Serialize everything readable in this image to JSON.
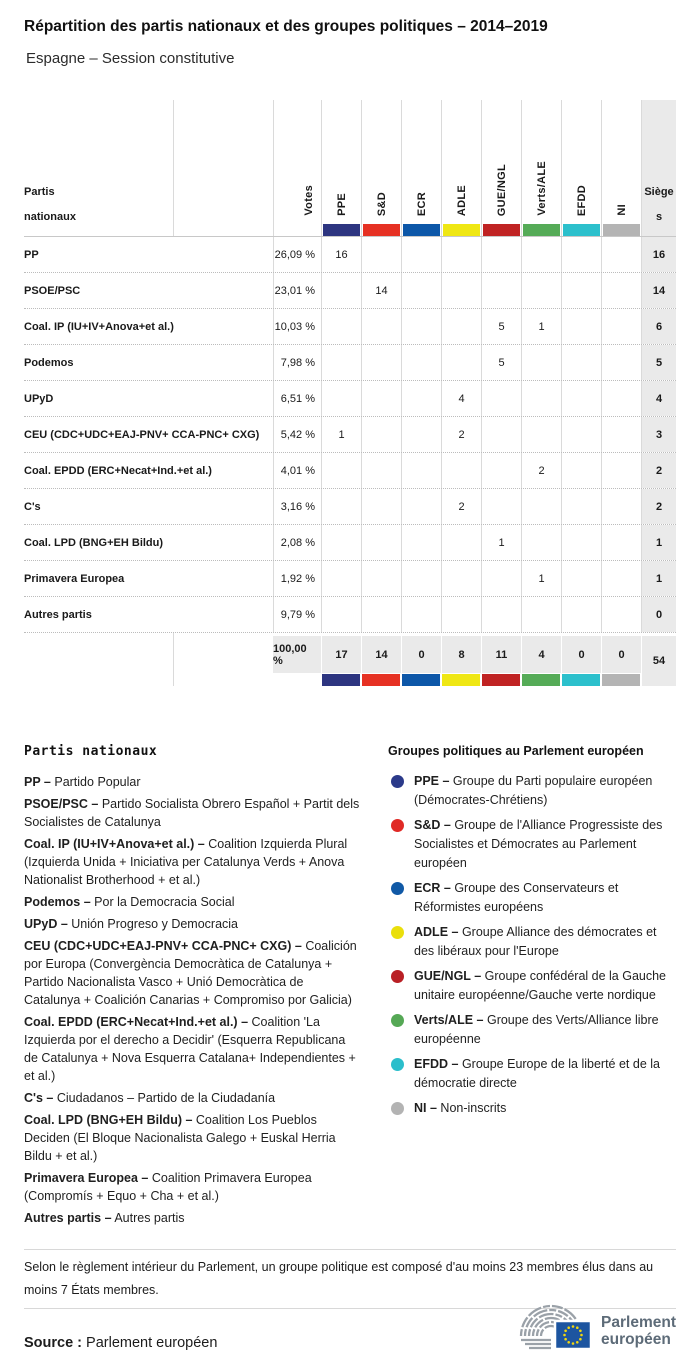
{
  "title": "Répartition des partis nationaux et des groupes politiques – 2014–2019",
  "subtitle": "Espagne – Session constitutive",
  "table": {
    "corner_header": "Partis nationaux",
    "votes_header": "Votes",
    "seats_header": "Sièges",
    "groups": [
      {
        "id": "PPE",
        "color": "#2d3580"
      },
      {
        "id": "S&D",
        "color": "#e63123"
      },
      {
        "id": "ECR",
        "color": "#0d57a8"
      },
      {
        "id": "ADLE",
        "color": "#efe714"
      },
      {
        "id": "GUE/NGL",
        "color": "#c02323"
      },
      {
        "id": "Verts/ALE",
        "color": "#55ab57"
      },
      {
        "id": "EFDD",
        "color": "#2cc0cc"
      },
      {
        "id": "NI",
        "color": "#b4b4b4"
      }
    ],
    "rows": [
      {
        "party": "PP",
        "votes": "26,09 %",
        "groups": [
          "16",
          "",
          "",
          "",
          "",
          "",
          "",
          ""
        ],
        "seats": "16"
      },
      {
        "party": "PSOE/PSC",
        "votes": "23,01 %",
        "groups": [
          "",
          "14",
          "",
          "",
          "",
          "",
          "",
          ""
        ],
        "seats": "14"
      },
      {
        "party": "Coal. IP (IU+IV+Anova+et al.)",
        "votes": "10,03 %",
        "groups": [
          "",
          "",
          "",
          "",
          "5",
          "1",
          "",
          ""
        ],
        "seats": "6"
      },
      {
        "party": "Podemos",
        "votes": "7,98 %",
        "groups": [
          "",
          "",
          "",
          "",
          "5",
          "",
          "",
          ""
        ],
        "seats": "5"
      },
      {
        "party": "UPyD",
        "votes": "6,51 %",
        "groups": [
          "",
          "",
          "",
          "4",
          "",
          "",
          "",
          ""
        ],
        "seats": "4"
      },
      {
        "party": "CEU (CDC+UDC+EAJ-PNV+ CCA-PNC+ CXG)",
        "votes": "5,42 %",
        "groups": [
          "1",
          "",
          "",
          "2",
          "",
          "",
          "",
          ""
        ],
        "seats": "3"
      },
      {
        "party": "Coal. EPDD (ERC+Necat+Ind.+et al.)",
        "votes": "4,01 %",
        "groups": [
          "",
          "",
          "",
          "",
          "",
          "2",
          "",
          ""
        ],
        "seats": "2"
      },
      {
        "party": "C's",
        "votes": "3,16 %",
        "groups": [
          "",
          "",
          "",
          "2",
          "",
          "",
          "",
          ""
        ],
        "seats": "2"
      },
      {
        "party": "Coal. LPD (BNG+EH Bildu)",
        "votes": "2,08 %",
        "groups": [
          "",
          "",
          "",
          "",
          "1",
          "",
          "",
          ""
        ],
        "seats": "1"
      },
      {
        "party": "Primavera Europea",
        "votes": "1,92 %",
        "groups": [
          "",
          "",
          "",
          "",
          "",
          "1",
          "",
          ""
        ],
        "seats": "1"
      },
      {
        "party": "Autres partis",
        "votes": "9,79 %",
        "groups": [
          "",
          "",
          "",
          "",
          "",
          "",
          "",
          ""
        ],
        "seats": "0"
      }
    ],
    "totals": {
      "votes": "100,00 %",
      "groups": [
        "17",
        "14",
        "0",
        "8",
        "11",
        "4",
        "0",
        "0"
      ],
      "seats": "54"
    }
  },
  "party_legend": {
    "title": "Partis nationaux",
    "entries": [
      {
        "term": "PP –",
        "desc": "Partido Popular"
      },
      {
        "term": "PSOE/PSC –",
        "desc": "Partido Socialista Obrero Español + Partit dels Socialistes de Catalunya"
      },
      {
        "term": "Coal. IP (IU+IV+Anova+et al.) –",
        "desc": "Coalition Izquierda Plural (Izquierda Unida + Iniciativa per Catalunya Verds + Anova Nationalist Brotherhood + et al.)"
      },
      {
        "term": "Podemos –",
        "desc": "Por la Democracia Social"
      },
      {
        "term": "UPyD –",
        "desc": "Unión Progreso y Democracia"
      },
      {
        "term": "CEU (CDC+UDC+EAJ-PNV+ CCA-PNC+ CXG) –",
        "desc": "Coalición por Europa (Convergència Democràtica de Catalunya + Partido Nacionalista Vasco + Unió Democràtica de Catalunya + Coalición Canarias + Compromiso por Galicia)"
      },
      {
        "term": "Coal. EPDD (ERC+Necat+Ind.+et al.) –",
        "desc": "Coalition 'La Izquierda por el derecho a Decidir' (Esquerra Republicana de Catalunya + Nova Esquerra Catalana+ Independientes + et al.)"
      },
      {
        "term": "C's –",
        "desc": "Ciudadanos – Partido de la Ciudadanía"
      },
      {
        "term": "Coal. LPD (BNG+EH Bildu) –",
        "desc": "Coalition Los Pueblos Deciden (El Bloque Nacionalista Galego + Euskal Herria Bildu + et al.)"
      },
      {
        "term": "Primavera Europea –",
        "desc": "Coalition Primavera Europea (Compromís + Equo + Cha + et al.)"
      },
      {
        "term": "Autres partis –",
        "desc": "Autres partis"
      }
    ]
  },
  "group_legend": {
    "title": "Groupes politiques au Parlement européen",
    "entries": [
      {
        "term": "PPE –",
        "desc": "Groupe du Parti populaire européen (Démocrates-Chrétiens)",
        "color": "#2b3a8a"
      },
      {
        "term": "S&D –",
        "desc": "Groupe de l'Alliance Progressiste des Socialistes et Démocrates au Parlement européen",
        "color": "#e02a26"
      },
      {
        "term": "ECR –",
        "desc": "Groupe des Conservateurs et Réformistes européens",
        "color": "#1059a6"
      },
      {
        "term": "ADLE –",
        "desc": "Groupe Alliance des démocrates et des libéraux pour l'Europe",
        "color": "#eadf0c"
      },
      {
        "term": "GUE/NGL –",
        "desc": "Groupe confédéral de la Gauche unitaire européenne/Gauche verte nordique",
        "color": "#b92025"
      },
      {
        "term": "Verts/ALE –",
        "desc": "Groupe des Verts/Alliance libre européenne",
        "color": "#55a855"
      },
      {
        "term": "EFDD –",
        "desc": "Groupe Europe de la liberté et de la démocratie directe",
        "color": "#2bbecb"
      },
      {
        "term": "NI –",
        "desc": "Non-inscrits",
        "color": "#b3b3b3"
      }
    ]
  },
  "footnote": "Selon le règlement intérieur du Parlement, un groupe politique est composé d'au moins 23 membres élus dans au moins 7 États membres.",
  "source": {
    "label": "Source :",
    "value": "Parlement européen"
  },
  "logo": {
    "line1": "Parlement",
    "line2": "européen"
  },
  "chart_data": {
    "type": "table",
    "title": "Répartition des partis nationaux et des groupes politiques – 2014–2019",
    "subtitle": "Espagne – Session constitutive",
    "columns": [
      "Partis nationaux",
      "Votes",
      "PPE",
      "S&D",
      "ECR",
      "ADLE",
      "GUE/NGL",
      "Verts/ALE",
      "EFDD",
      "NI",
      "Sièges"
    ],
    "rows": [
      [
        "PP",
        "26,09 %",
        16,
        null,
        null,
        null,
        null,
        null,
        null,
        null,
        16
      ],
      [
        "PSOE/PSC",
        "23,01 %",
        null,
        14,
        null,
        null,
        null,
        null,
        null,
        null,
        14
      ],
      [
        "Coal. IP (IU+IV+Anova+et al.)",
        "10,03 %",
        null,
        null,
        null,
        null,
        5,
        1,
        null,
        null,
        6
      ],
      [
        "Podemos",
        "7,98 %",
        null,
        null,
        null,
        null,
        5,
        null,
        null,
        null,
        5
      ],
      [
        "UPyD",
        "6,51 %",
        null,
        null,
        null,
        4,
        null,
        null,
        null,
        null,
        4
      ],
      [
        "CEU (CDC+UDC+EAJ-PNV+ CCA-PNC+ CXG)",
        "5,42 %",
        1,
        null,
        null,
        2,
        null,
        null,
        null,
        null,
        3
      ],
      [
        "Coal. EPDD (ERC+Necat+Ind.+et al.)",
        "4,01 %",
        null,
        null,
        null,
        null,
        null,
        2,
        null,
        null,
        2
      ],
      [
        "C's",
        "3,16 %",
        null,
        null,
        null,
        2,
        null,
        null,
        null,
        null,
        2
      ],
      [
        "Coal. LPD (BNG+EH Bildu)",
        "2,08 %",
        null,
        null,
        null,
        null,
        1,
        null,
        null,
        null,
        1
      ],
      [
        "Primavera Europea",
        "1,92 %",
        null,
        null,
        null,
        null,
        null,
        1,
        null,
        null,
        1
      ],
      [
        "Autres partis",
        "9,79 %",
        null,
        null,
        null,
        null,
        null,
        null,
        null,
        null,
        0
      ]
    ],
    "totals": [
      "",
      "100,00 %",
      17,
      14,
      0,
      8,
      11,
      4,
      0,
      0,
      54
    ]
  }
}
